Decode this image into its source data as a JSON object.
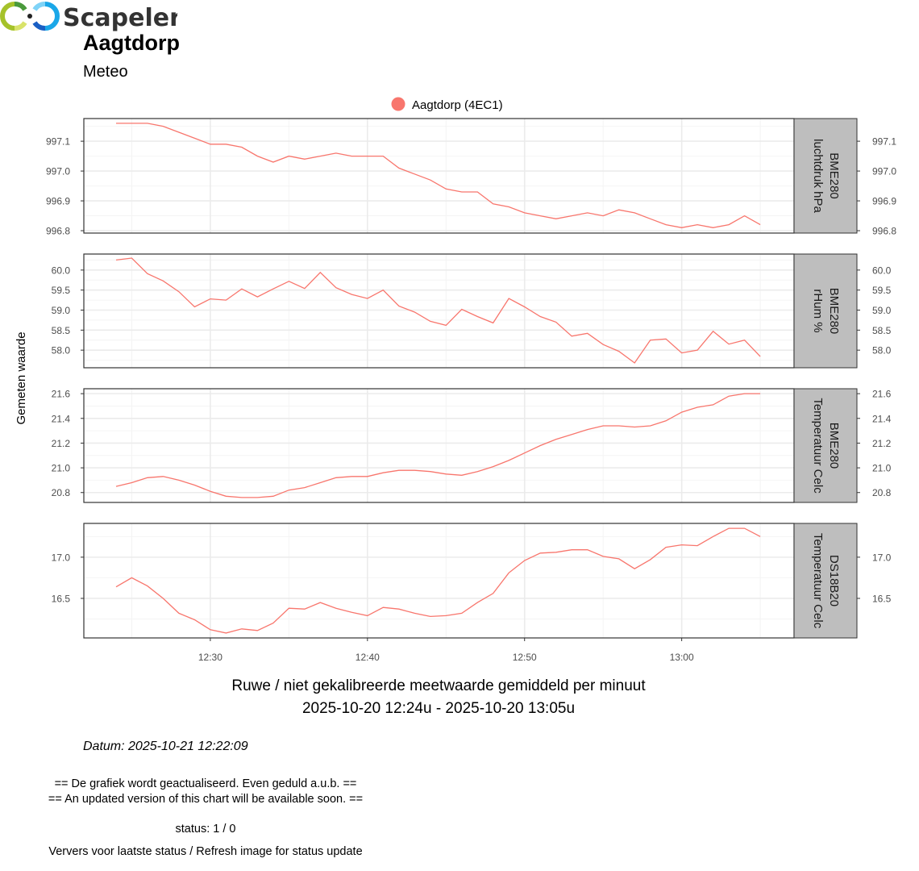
{
  "header": {
    "title": "Aagtdorp",
    "subtitle": "Meteo"
  },
  "footer": {
    "caption_line1": "Ruwe / niet gekalibreerde meetwaarde gemiddeld per minuut",
    "caption_line2": "2025-10-20 12:24u - 2025-10-20 13:05u",
    "datum": "Datum: 2025-10-21 12:22:09",
    "update_nl": "== De grafiek wordt geactualiseerd. Even geduld a.u.b. ==",
    "update_en": "== An updated version of this chart will be available soon. ==",
    "status": "status: 1 / 0",
    "refresh": "Ververs voor laatste status / Refresh image for status update",
    "logo_text": "Scapeler"
  },
  "chart_data": {
    "type": "line",
    "ylabel": "Gemeten waarde",
    "legend": {
      "label": "Aagtdorp (4EC1)",
      "color": "#F8766D",
      "placement": "top"
    },
    "x_start": "12:24",
    "x_step_minutes": 1,
    "x_ticks": [
      {
        "min": 30,
        "label": "12:30"
      },
      {
        "min": 40,
        "label": "12:40"
      },
      {
        "min": 50,
        "label": "12:50"
      },
      {
        "min": 60,
        "label": "13:00"
      }
    ],
    "xlim_minutes_after_1200": [
      21.95,
      67.15
    ],
    "grid": true,
    "panels": [
      {
        "strip": [
          "BME280",
          "luchtdruk hPa"
        ],
        "ylim": [
          996.792,
          997.176
        ],
        "ticks": [
          996.8,
          996.9,
          997.0,
          997.1
        ],
        "tick_decimals": 1,
        "values": [
          997.16,
          997.16,
          997.16,
          997.15,
          997.13,
          997.11,
          997.09,
          997.09,
          997.08,
          997.05,
          997.03,
          997.05,
          997.04,
          997.05,
          997.06,
          997.05,
          997.05,
          997.05,
          997.01,
          996.99,
          996.97,
          996.94,
          996.93,
          996.93,
          996.89,
          996.88,
          996.86,
          996.85,
          996.84,
          996.85,
          996.86,
          996.85,
          996.87,
          996.86,
          996.84,
          996.82,
          996.81,
          996.82,
          996.81,
          996.82,
          996.85,
          996.82
        ]
      },
      {
        "strip": [
          "BME280",
          "rHum %"
        ],
        "ylim": [
          57.56,
          60.4
        ],
        "ticks": [
          58.0,
          58.5,
          59.0,
          59.5,
          60.0
        ],
        "tick_decimals": 1,
        "values": [
          60.25,
          60.3,
          59.91,
          59.73,
          59.46,
          59.08,
          59.28,
          59.25,
          59.53,
          59.33,
          59.53,
          59.72,
          59.54,
          59.94,
          59.56,
          59.39,
          59.29,
          59.5,
          59.1,
          58.95,
          58.72,
          58.62,
          59.02,
          58.84,
          58.68,
          59.29,
          59.08,
          58.84,
          58.7,
          58.35,
          58.42,
          58.14,
          57.97,
          57.68,
          58.25,
          58.28,
          57.93,
          58.0,
          58.47,
          58.15,
          58.25,
          57.84
        ]
      },
      {
        "strip": [
          "BME280",
          "Temperatuur Celc"
        ],
        "ylim": [
          20.72,
          21.64
        ],
        "ticks": [
          20.8,
          21.0,
          21.2,
          21.4,
          21.6
        ],
        "tick_decimals": 1,
        "values": [
          20.85,
          20.88,
          20.92,
          20.93,
          20.9,
          20.86,
          20.81,
          20.77,
          20.76,
          20.76,
          20.77,
          20.82,
          20.84,
          20.88,
          20.92,
          20.93,
          20.93,
          20.96,
          20.98,
          20.98,
          20.97,
          20.95,
          20.94,
          20.97,
          21.01,
          21.06,
          21.12,
          21.18,
          21.23,
          21.27,
          21.31,
          21.34,
          21.34,
          21.33,
          21.34,
          21.38,
          21.45,
          21.49,
          21.51,
          21.58,
          21.6,
          21.6
        ]
      },
      {
        "strip": [
          "DS18B20",
          "Temperatuur Celc"
        ],
        "ylim": [
          16.02,
          17.41
        ],
        "ticks": [
          16.5,
          17.0
        ],
        "tick_decimals": 1,
        "values": [
          16.64,
          16.75,
          16.65,
          16.5,
          16.32,
          16.24,
          16.12,
          16.08,
          16.13,
          16.11,
          16.2,
          16.38,
          16.37,
          16.45,
          16.38,
          16.33,
          16.29,
          16.39,
          16.37,
          16.32,
          16.28,
          16.29,
          16.32,
          16.45,
          16.56,
          16.81,
          16.96,
          17.05,
          17.06,
          17.09,
          17.09,
          17.01,
          16.98,
          16.86,
          16.97,
          17.12,
          17.15,
          17.14,
          17.25,
          17.35,
          17.35,
          17.25
        ]
      }
    ]
  }
}
